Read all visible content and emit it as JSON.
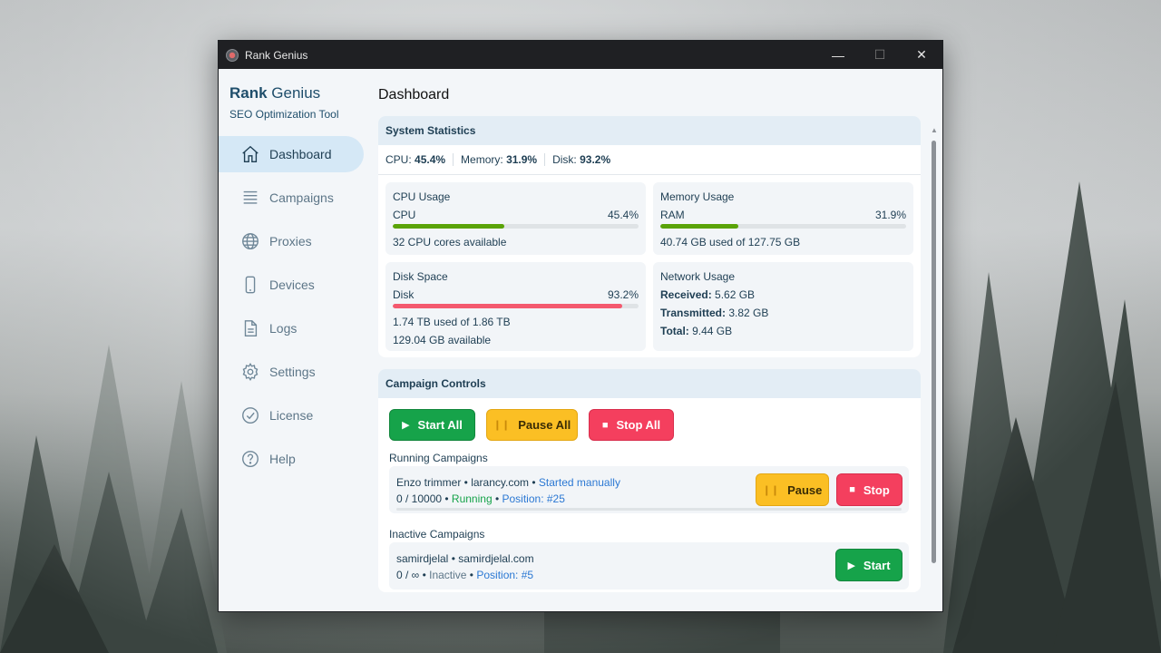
{
  "window": {
    "title": "Rank Genius",
    "minimize_glyph": "—",
    "maximize_glyph": "☐",
    "close_glyph": "✕"
  },
  "brand": {
    "name_bold": "Rank",
    "name_rest": " Genius",
    "subtitle": "SEO Optimization Tool"
  },
  "nav": [
    {
      "label": "Dashboard",
      "icon": "home-icon",
      "active": true
    },
    {
      "label": "Campaigns",
      "icon": "list-icon",
      "active": false
    },
    {
      "label": "Proxies",
      "icon": "globe-icon",
      "active": false
    },
    {
      "label": "Devices",
      "icon": "phone-icon",
      "active": false
    },
    {
      "label": "Logs",
      "icon": "document-icon",
      "active": false
    },
    {
      "label": "Settings",
      "icon": "gear-icon",
      "active": false
    },
    {
      "label": "License",
      "icon": "check-circle-icon",
      "active": false
    },
    {
      "label": "Help",
      "icon": "help-icon",
      "active": false
    }
  ],
  "page": {
    "title": "Dashboard"
  },
  "system_stats": {
    "header": "System Statistics",
    "summary": {
      "cpu_label": "CPU:",
      "cpu_value": "45.4%",
      "mem_label": "Memory:",
      "mem_value": "31.9%",
      "disk_label": "Disk:",
      "disk_value": "93.2%"
    },
    "cpu": {
      "title": "CPU Usage",
      "label": "CPU",
      "value": "45.4%",
      "percent": 45.4,
      "note": "32 CPU cores available",
      "color": "#5aa307"
    },
    "memory": {
      "title": "Memory Usage",
      "label": "RAM",
      "value": "31.9%",
      "percent": 31.9,
      "note": "40.74 GB used of 127.75 GB",
      "color": "#5aa307"
    },
    "disk": {
      "title": "Disk Space",
      "label": "Disk",
      "value": "93.2%",
      "percent": 93.2,
      "note1": "1.74 TB used of 1.86 TB",
      "note2": "129.04 GB available",
      "color": "#f4596e"
    },
    "network": {
      "title": "Network Usage",
      "received_label": "Received:",
      "received_value": " 5.62 GB",
      "transmitted_label": "Transmitted:",
      "transmitted_value": " 3.82 GB",
      "total_label": "Total:",
      "total_value": " 9.44 GB"
    }
  },
  "campaign_controls": {
    "header": "Campaign Controls",
    "start_all": "Start All",
    "pause_all": "Pause All",
    "stop_all": "Stop All",
    "running_label": "Running Campaigns",
    "inactive_label": "Inactive Campaigns",
    "running": [
      {
        "name": "Enzo trimmer",
        "domain": "larancy.com",
        "trigger": "Started manually",
        "progress": "0 / 10000",
        "status": "Running",
        "position": "Position: #25",
        "pause_label": "Pause",
        "stop_label": "Stop"
      }
    ],
    "inactive": [
      {
        "name": "samirdjelal",
        "domain": "samirdjelal.com",
        "progress": "0 / ∞",
        "status": "Inactive",
        "position": "Position: #5",
        "start_label": "Start"
      }
    ]
  },
  "colors": {
    "accent": "#1e3e53",
    "green": "#16a34a",
    "yellow": "#fbbf24",
    "red": "#f43f5e",
    "link": "#2b78d3"
  }
}
